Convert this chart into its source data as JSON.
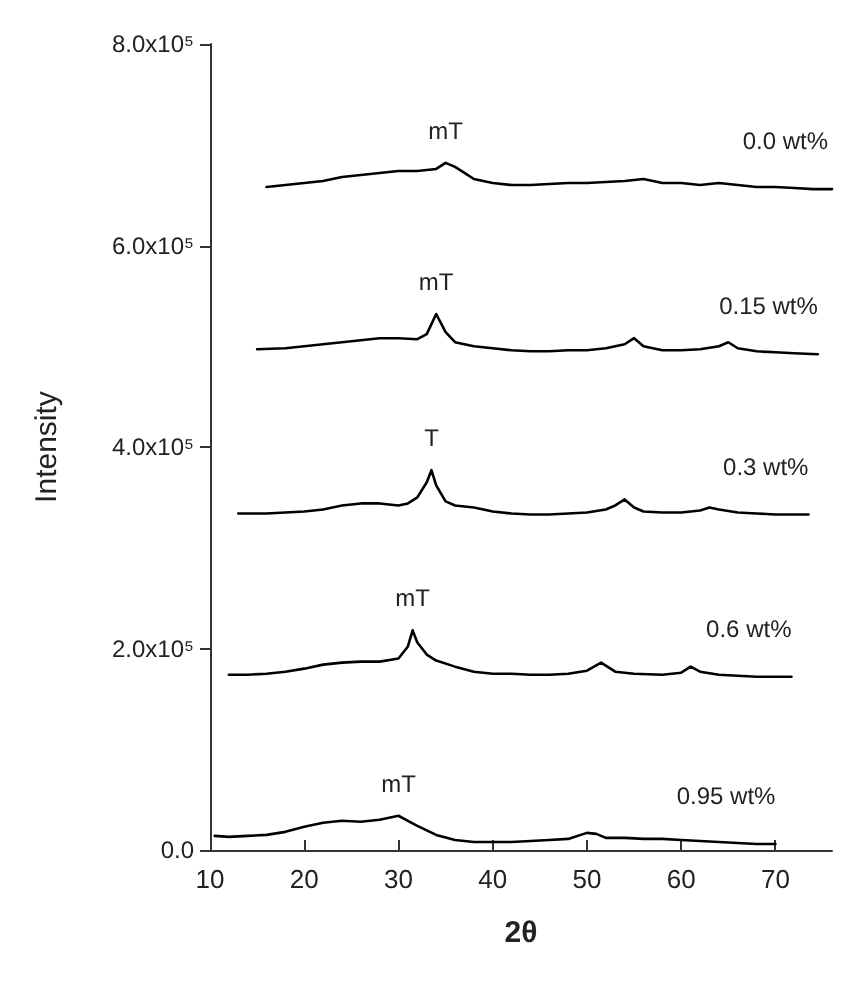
{
  "chart_data": {
    "type": "line",
    "xlabel": "2θ",
    "ylabel": "Intensity",
    "xlim": [
      10,
      76
    ],
    "xticks": [
      10,
      20,
      30,
      40,
      50,
      60,
      70
    ],
    "ylim": [
      0,
      800000
    ],
    "yticks": [
      {
        "value": 0,
        "label": "0.0"
      },
      {
        "value": 200000,
        "label": "2.0x10⁵"
      },
      {
        "value": 400000,
        "label": "4.0x10⁵"
      },
      {
        "value": 600000,
        "label": "6.0x10⁵"
      },
      {
        "value": 800000,
        "label": "8.0x10⁵"
      }
    ],
    "grid": false,
    "legend": false,
    "marker": "none",
    "line_style": "solid",
    "series": [
      {
        "name": "0.0 wt%",
        "color": "#000000",
        "x": [
          16,
          18,
          20,
          22,
          24,
          26,
          28,
          30,
          32,
          34,
          35,
          36,
          37,
          38,
          40,
          42,
          44,
          46,
          48,
          50,
          52,
          54,
          56,
          58,
          60,
          62,
          64,
          66,
          68,
          70,
          72,
          74,
          76
        ],
        "values": [
          658000,
          660000,
          662000,
          664000,
          668000,
          670000,
          672000,
          674000,
          674000,
          676000,
          682000,
          678000,
          672000,
          666000,
          662000,
          660000,
          660000,
          661000,
          662000,
          662000,
          663000,
          664000,
          666000,
          662000,
          662000,
          660000,
          662000,
          660000,
          658000,
          658000,
          657000,
          656000,
          656000
        ]
      },
      {
        "name": "0.15 wt%",
        "color": "#000000",
        "x": [
          15,
          18,
          20,
          22,
          24,
          26,
          28,
          30,
          32,
          33,
          34,
          35,
          36,
          38,
          40,
          42,
          44,
          46,
          48,
          50,
          52,
          54,
          55,
          56,
          58,
          60,
          62,
          64,
          65,
          66,
          68,
          70,
          72,
          74.5
        ],
        "values": [
          497000,
          498000,
          500000,
          502000,
          504000,
          506000,
          508000,
          508000,
          507000,
          512000,
          532000,
          514000,
          504000,
          500000,
          498000,
          496000,
          495000,
          495000,
          496000,
          496000,
          498000,
          502000,
          508000,
          500000,
          496000,
          496000,
          497000,
          500000,
          504000,
          498000,
          495000,
          494000,
          493000,
          492000
        ]
      },
      {
        "name": "0.3 wt%",
        "color": "#000000",
        "x": [
          13,
          16,
          18,
          20,
          22,
          24,
          26,
          28,
          30,
          31,
          32,
          33,
          33.5,
          34,
          35,
          36,
          38,
          40,
          42,
          44,
          46,
          48,
          50,
          52,
          53,
          54,
          55,
          56,
          58,
          60,
          62,
          63,
          64,
          66,
          68,
          70,
          73.5
        ],
        "values": [
          334000,
          334000,
          335000,
          336000,
          338000,
          342000,
          344000,
          344000,
          342000,
          344000,
          350000,
          365000,
          377000,
          362000,
          346000,
          342000,
          340000,
          336000,
          334000,
          333000,
          333000,
          334000,
          335000,
          338000,
          342000,
          348000,
          340000,
          336000,
          335000,
          335000,
          337000,
          340000,
          338000,
          335000,
          334000,
          333000,
          333000
        ]
      },
      {
        "name": "0.6 wt%",
        "color": "#000000",
        "x": [
          12,
          14,
          16,
          18,
          20,
          22,
          24,
          26,
          28,
          30,
          31,
          31.5,
          32,
          33,
          34,
          36,
          38,
          40,
          42,
          44,
          46,
          48,
          50,
          51.5,
          53,
          55,
          58,
          60,
          61,
          62,
          64,
          66,
          68,
          71.7
        ],
        "values": [
          174000,
          174000,
          175000,
          177000,
          180000,
          184000,
          186000,
          187000,
          187000,
          190000,
          202000,
          218000,
          206000,
          194000,
          188000,
          182000,
          177000,
          175000,
          175000,
          174000,
          174000,
          175000,
          178000,
          186000,
          177000,
          175000,
          174000,
          176000,
          182000,
          177000,
          174000,
          173000,
          172000,
          172000
        ]
      },
      {
        "name": "0.95 wt%",
        "color": "#000000",
        "x": [
          10.5,
          12,
          14,
          16,
          18,
          20,
          22,
          24,
          26,
          28,
          30,
          31,
          32,
          34,
          36,
          38,
          40,
          42,
          44,
          46,
          48,
          50,
          51,
          52,
          54,
          56,
          58,
          60,
          62,
          64,
          66,
          68,
          70
        ],
        "values": [
          14000,
          13000,
          14000,
          15000,
          18000,
          23000,
          27000,
          29000,
          28000,
          30000,
          34000,
          29000,
          24000,
          15000,
          10000,
          8000,
          8000,
          8000,
          9000,
          10000,
          11000,
          17000,
          16000,
          12000,
          12000,
          11000,
          11000,
          10000,
          9000,
          8000,
          7000,
          6000,
          6000
        ]
      }
    ],
    "annotations": [
      "mT",
      "mT",
      "T",
      "mT",
      "mT"
    ]
  }
}
